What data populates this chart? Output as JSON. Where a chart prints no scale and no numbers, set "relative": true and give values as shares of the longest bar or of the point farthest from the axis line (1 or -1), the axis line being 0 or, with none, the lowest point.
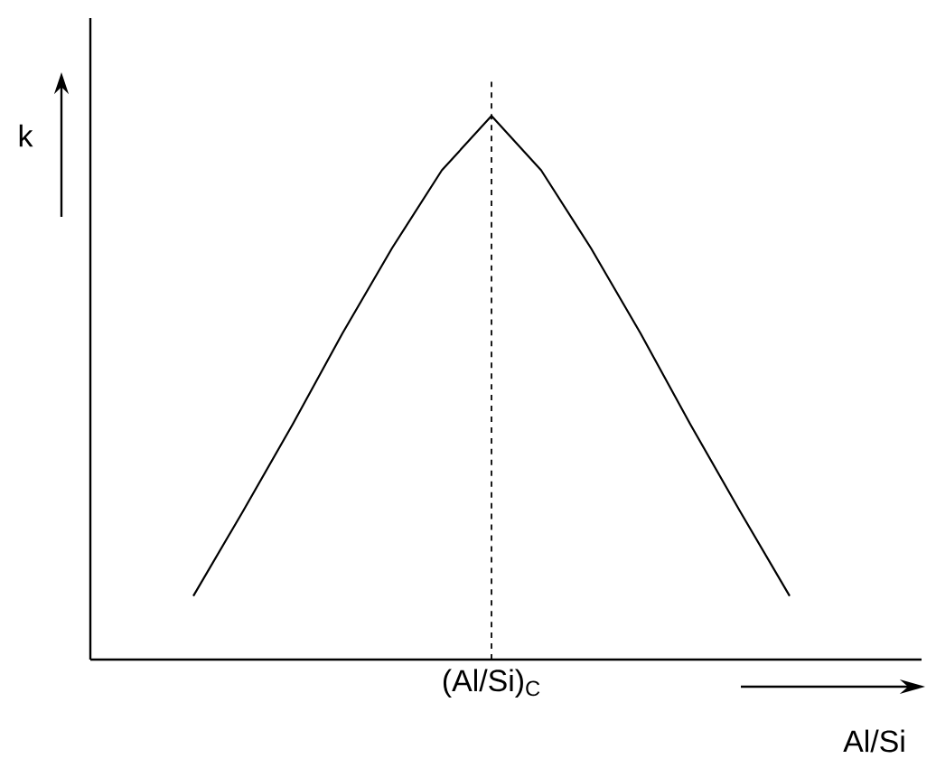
{
  "chart_data": {
    "type": "line",
    "relative": true,
    "color": "#000000",
    "line_style": "solid",
    "xlabel": "Al/Si",
    "ylabel": "k",
    "categories": [
      null,
      null,
      null,
      null,
      null,
      null,
      null,
      null,
      null,
      null,
      null,
      null,
      null
    ],
    "values": [
      0.117,
      0.273,
      0.433,
      0.6,
      0.757,
      0.9,
      1,
      0.9,
      0.757,
      0.6,
      0.433,
      0.273,
      0.117
    ],
    "annotations": [
      "(Al/Si)$_{C}$"
    ]
  }
}
